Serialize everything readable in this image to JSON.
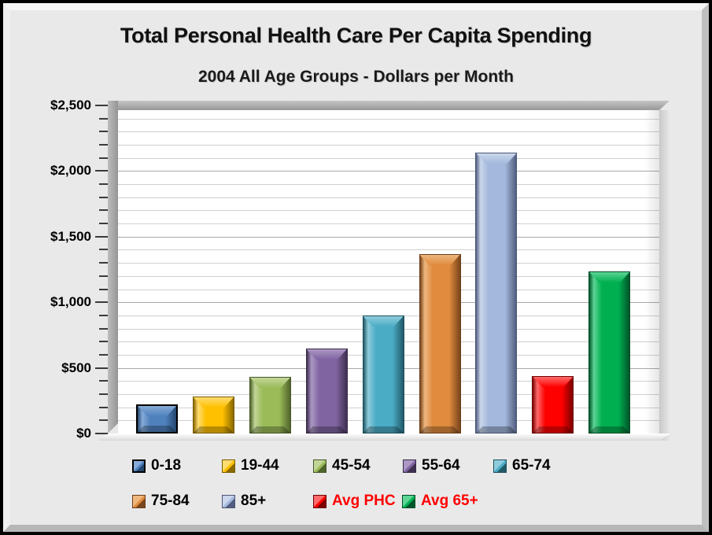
{
  "chart_data": {
    "type": "bar",
    "title": "Total Personal Health Care Per Capita Spending",
    "subtitle": "2004 All Age Groups - Dollars per Month",
    "categories": [
      "0-18",
      "19-44",
      "45-54",
      "55-64",
      "65-74",
      "75-84",
      "85+",
      "Avg PHC",
      "Avg 65+"
    ],
    "values": [
      221,
      281,
      434,
      649,
      898,
      1366,
      2141,
      440,
      1233
    ],
    "ylim": [
      0,
      2500
    ],
    "ytick_major_interval": 500,
    "ytick_minor_interval": 100,
    "ytick_labels": [
      {
        "value": 0,
        "label": "$0"
      },
      {
        "value": 500,
        "label": "$500"
      },
      {
        "value": 1000,
        "label": "$1,000"
      },
      {
        "value": 1500,
        "label": "$1,500"
      },
      {
        "value": 2000,
        "label": "$2,000"
      },
      {
        "value": 2500,
        "label": "$2,500"
      }
    ],
    "grid": "on",
    "legend_position": "bottom",
    "series_styles": [
      {
        "label": "0-18",
        "face": "#4f81bd",
        "light": "#86abd8",
        "dark": "#24486f",
        "border": "#000000",
        "label_color": "#000000"
      },
      {
        "label": "19-44",
        "face": "#ffc000",
        "light": "#ffdd70",
        "dark": "#8a6800",
        "border": "#7a5c00",
        "label_color": "#000000"
      },
      {
        "label": "45-54",
        "face": "#9bbb59",
        "light": "#c2d698",
        "dark": "#50642c",
        "border": "#465726",
        "label_color": "#000000"
      },
      {
        "label": "55-64",
        "face": "#8064a2",
        "light": "#ac98c4",
        "dark": "#403050",
        "border": "#382a46",
        "label_color": "#000000"
      },
      {
        "label": "65-74",
        "face": "#4bacc6",
        "light": "#8fccdd",
        "dark": "#215967",
        "border": "#1d4f5c",
        "label_color": "#000000"
      },
      {
        "label": "75-84",
        "face": "#e08b3e",
        "light": "#eeb77f",
        "dark": "#78451c",
        "border": "#6b3e19",
        "label_color": "#000000"
      },
      {
        "label": "85+",
        "face": "#a3b8dc",
        "light": "#cad7ec",
        "dark": "#535f80",
        "border": "#4a5573",
        "label_color": "#000000"
      },
      {
        "label": "Avg PHC",
        "face": "#fe0000",
        "light": "#ff6a6a",
        "dark": "#7d0000",
        "border": "#6e0000",
        "label_color": "#ff0000"
      },
      {
        "label": "Avg 65+",
        "face": "#00b050",
        "light": "#5cd494",
        "dark": "#00562a",
        "border": "#004d25",
        "label_color": "#ff0000"
      }
    ],
    "legend_rows": [
      [
        0,
        1,
        2,
        3,
        4
      ],
      [
        5,
        6,
        7,
        8
      ]
    ]
  },
  "colors": {
    "background": "#e9e9e9",
    "plot_background": "#ffffff",
    "wall": "#a6a6a6",
    "gridline_minor": "#d0d0d0",
    "gridline_major": "#a9a9a9",
    "title_color": "#111111",
    "legend_red": "#ff0000"
  }
}
